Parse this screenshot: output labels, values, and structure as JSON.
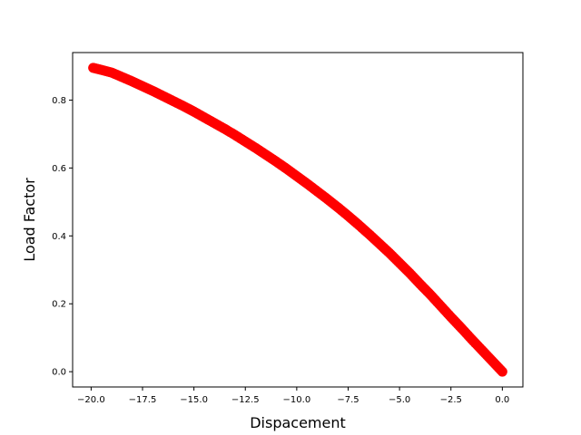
{
  "chart_data": {
    "type": "scatter",
    "title": "",
    "xlabel": "Dispacement",
    "ylabel": "Load Factor",
    "xlim": [
      -20.9,
      1.0
    ],
    "ylim": [
      -0.045,
      0.94
    ],
    "x_ticks": [
      -20.0,
      -17.5,
      -15.0,
      -12.5,
      -10.0,
      -7.5,
      -5.0,
      -2.5,
      0.0
    ],
    "x_tick_labels": [
      "−20.0",
      "−17.5",
      "−15.0",
      "−12.5",
      "−10.0",
      "−7.5",
      "−5.0",
      "−2.5",
      "0.0"
    ],
    "y_ticks": [
      0.0,
      0.2,
      0.4,
      0.6,
      0.8
    ],
    "y_tick_labels": [
      "0.0",
      "0.2",
      "0.4",
      "0.6",
      "0.8"
    ],
    "grid": false,
    "legend": "none",
    "marker_color": "#ff0000",
    "series": [
      {
        "x": [
          0.0,
          -0.5,
          -1.0,
          -1.5,
          -2.0,
          -2.5,
          -3.0,
          -3.5,
          -4.0,
          -4.5,
          -5.0,
          -5.5,
          -6.0,
          -6.5,
          -7.0,
          -7.5,
          -8.0,
          -8.5,
          -9.0,
          -9.5,
          -10.0,
          -10.5,
          -11.0,
          -11.5,
          -12.0,
          -12.5,
          -13.0,
          -13.5,
          -14.0,
          -14.5,
          -15.0,
          -15.5,
          -16.0,
          -16.5,
          -17.0,
          -17.5,
          -18.0,
          -18.5,
          -19.0,
          -19.5,
          -19.9
        ],
        "y": [
          0.0,
          0.032,
          0.064,
          0.096,
          0.129,
          0.161,
          0.194,
          0.227,
          0.258,
          0.29,
          0.32,
          0.35,
          0.378,
          0.406,
          0.433,
          0.459,
          0.484,
          0.508,
          0.531,
          0.554,
          0.576,
          0.598,
          0.619,
          0.639,
          0.659,
          0.678,
          0.697,
          0.715,
          0.732,
          0.749,
          0.766,
          0.782,
          0.797,
          0.812,
          0.827,
          0.841,
          0.855,
          0.868,
          0.881,
          0.889,
          0.895
        ]
      }
    ]
  }
}
